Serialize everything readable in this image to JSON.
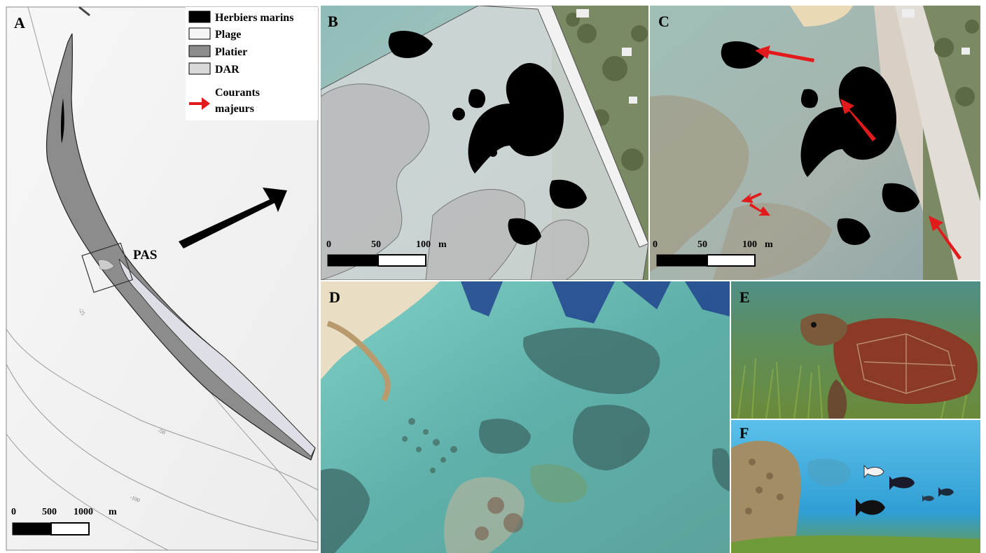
{
  "panels": {
    "a": {
      "label": "A"
    },
    "b": {
      "label": "B"
    },
    "c": {
      "label": "C"
    },
    "d": {
      "label": "D"
    },
    "e": {
      "label": "E"
    },
    "f": {
      "label": "F"
    }
  },
  "legend": {
    "items": [
      "Herbiers marins",
      "Plage",
      "Platier",
      "DAR"
    ],
    "currents_line1": "Courants",
    "currents_line2": "majeurs"
  },
  "map_a": {
    "site_label": "PAS",
    "contours": [
      "-25",
      "-50",
      "-100"
    ],
    "scale": {
      "ticks": [
        "0",
        "500",
        "1000"
      ],
      "unit": "m"
    }
  },
  "map_bc": {
    "scale": {
      "ticks": [
        "0",
        "50",
        "100"
      ],
      "unit": "m"
    }
  },
  "colors": {
    "herbiers": "#000000",
    "plage": "#f4f4f4",
    "platier": "#8c8c8c",
    "dar": "#d9d9d9",
    "currents": "#e31a1c"
  }
}
